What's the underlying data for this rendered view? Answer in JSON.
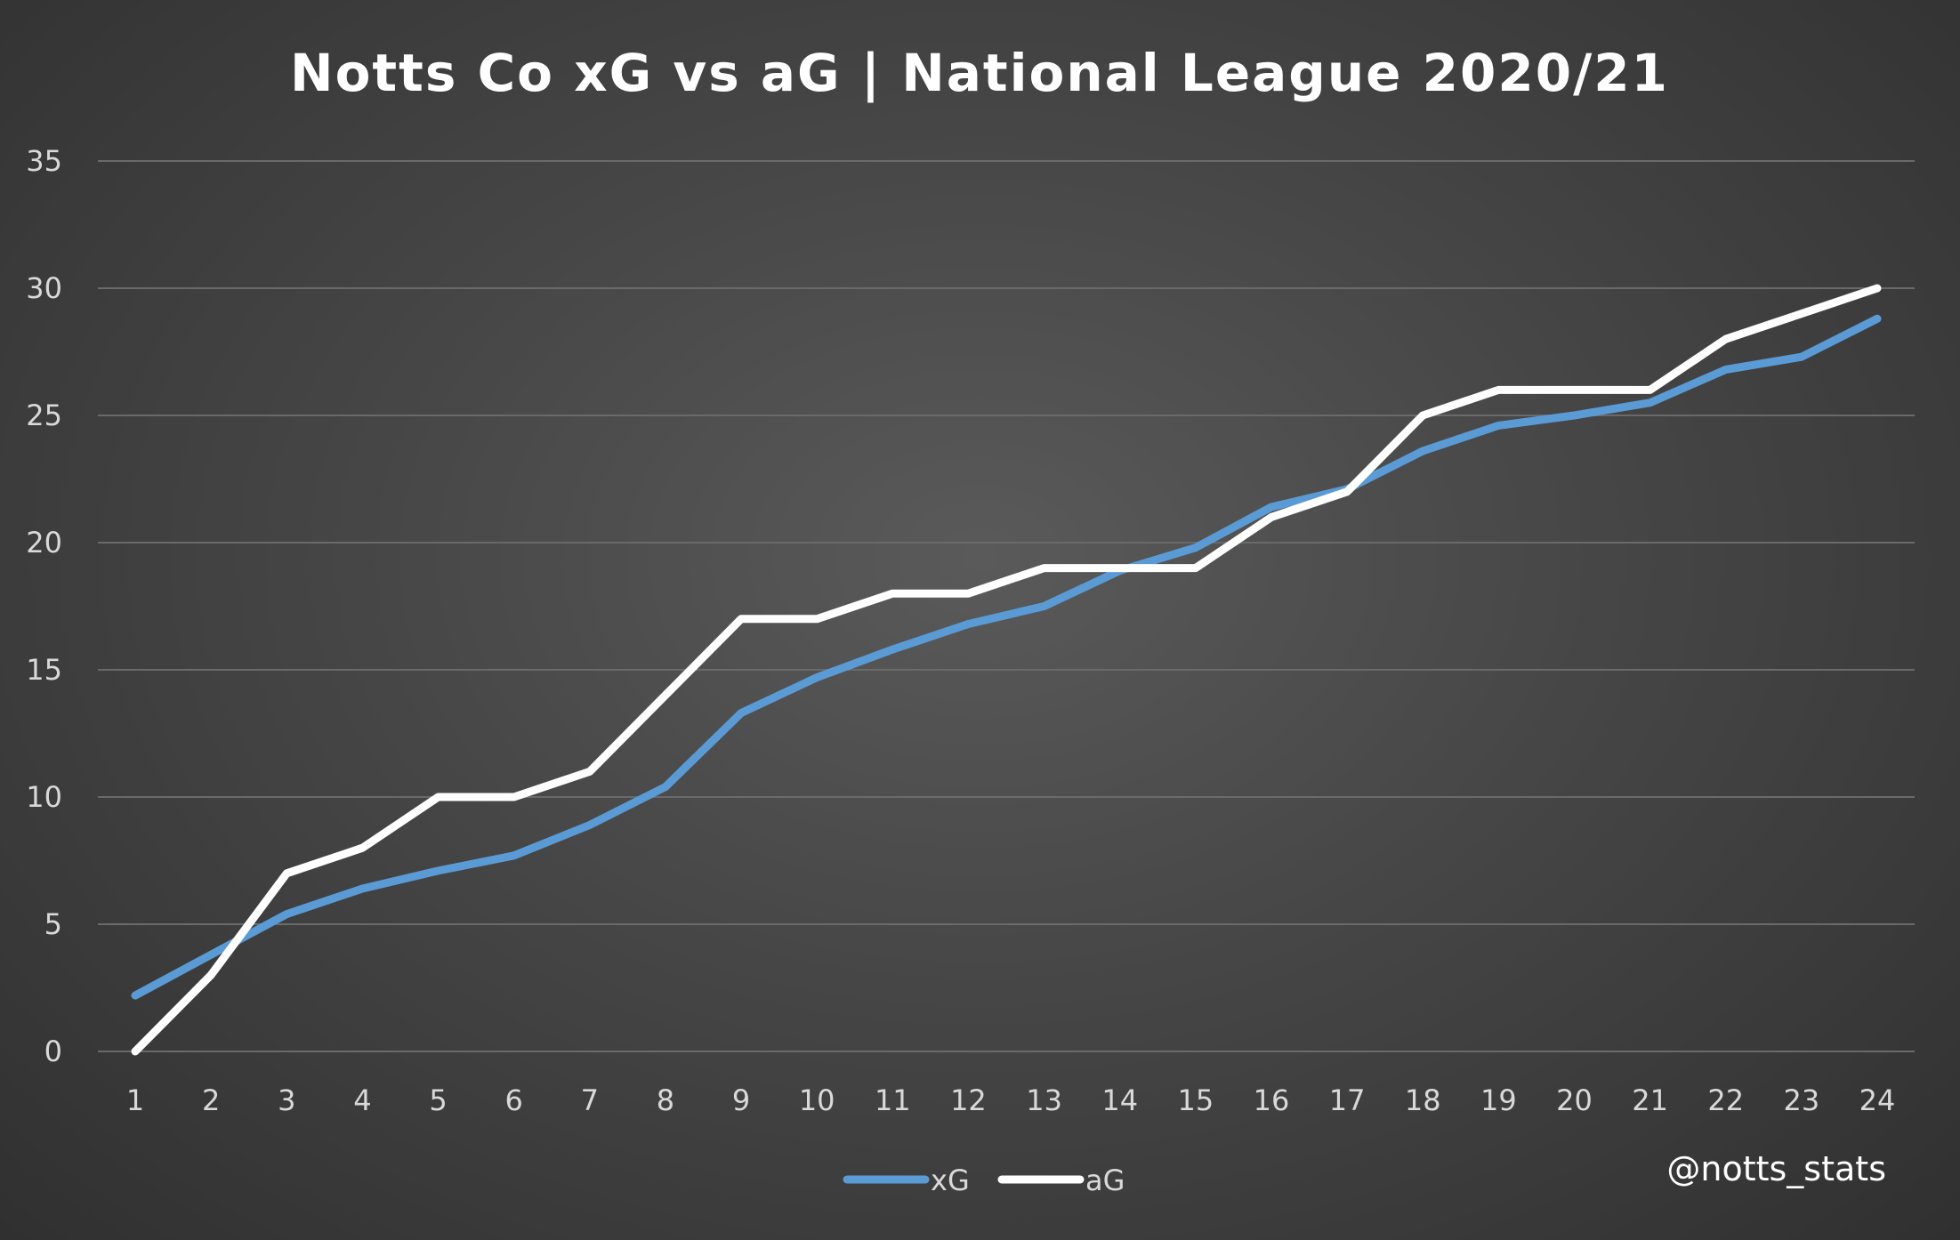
{
  "chart_data": {
    "type": "line",
    "title": "Notts Co xG vs aG | National League 2020/21",
    "xlabel": "",
    "ylabel": "",
    "x": [
      1,
      2,
      3,
      4,
      5,
      6,
      7,
      8,
      9,
      10,
      11,
      12,
      13,
      14,
      15,
      16,
      17,
      18,
      19,
      20,
      21,
      22,
      23,
      24
    ],
    "ylim": [
      0,
      35
    ],
    "yticks": [
      0,
      5,
      10,
      15,
      20,
      25,
      30,
      35
    ],
    "grid": true,
    "legend": "bottom",
    "series": [
      {
        "name": "xG",
        "color": "#5b9bd5",
        "values": [
          2.2,
          3.8,
          5.4,
          6.4,
          7.1,
          7.7,
          8.9,
          10.4,
          13.3,
          14.7,
          15.8,
          16.8,
          17.5,
          18.9,
          19.8,
          21.4,
          22.1,
          23.6,
          24.6,
          25.0,
          25.5,
          26.8,
          27.3,
          28.8
        ]
      },
      {
        "name": "aG",
        "color": "#ffffff",
        "values": [
          0,
          3,
          7,
          8,
          10,
          10,
          11,
          14,
          17,
          17,
          18,
          18,
          19,
          19,
          19,
          21,
          22,
          25,
          26,
          26,
          26,
          28,
          29,
          30
        ]
      }
    ]
  },
  "credit": "@notts_stats"
}
